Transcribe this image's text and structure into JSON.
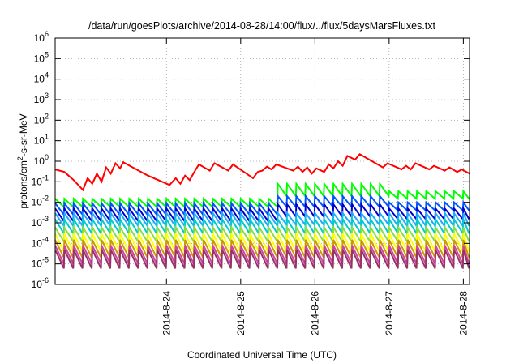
{
  "chart_data": {
    "type": "line",
    "title": "/data/run/goesPlots/archive/2014-08-28/14:00/flux/../flux/5daysMarsFluxes.txt",
    "xlabel": "Coordinated Universal Time (UTC)",
    "ylabel_base": "protons/cm",
    "ylabel_sup": "2",
    "ylabel_rest": "-s-sr-MeV",
    "y_scale": "log",
    "ylim": [
      1e-06,
      1000000.0
    ],
    "y_ticks": [
      {
        "base": "10",
        "exp": "-6"
      },
      {
        "base": "10",
        "exp": "-5"
      },
      {
        "base": "10",
        "exp": "-4"
      },
      {
        "base": "10",
        "exp": "-3"
      },
      {
        "base": "10",
        "exp": "-2"
      },
      {
        "base": "10",
        "exp": "-1"
      },
      {
        "base": "10",
        "exp": "0"
      },
      {
        "base": "10",
        "exp": "1"
      },
      {
        "base": "10",
        "exp": "2"
      },
      {
        "base": "10",
        "exp": "3"
      },
      {
        "base": "10",
        "exp": "4"
      },
      {
        "base": "10",
        "exp": "5"
      },
      {
        "base": "10",
        "exp": "6"
      }
    ],
    "xlim": [
      "2014-08-23T00:00",
      "2014-08-28T14:00"
    ],
    "x_ticks": [
      "2014-8-24",
      "2014-8-25",
      "2014-8-26",
      "2014-8-27",
      "2014-8-28"
    ],
    "grid": true,
    "series": [
      {
        "color": "#ff0000",
        "points": [
          [
            "2014-08-23 00:00",
            0.4
          ],
          [
            "2014-08-23 03:00",
            0.3
          ],
          [
            "2014-08-23 06:00",
            0.12
          ],
          [
            "2014-08-23 09:00",
            0.04
          ],
          [
            "2014-08-23 10:30",
            0.15
          ],
          [
            "2014-08-23 12:00",
            0.08
          ],
          [
            "2014-08-23 13:30",
            0.25
          ],
          [
            "2014-08-23 15:00",
            0.1
          ],
          [
            "2014-08-23 16:30",
            0.5
          ],
          [
            "2014-08-23 18:00",
            0.25
          ],
          [
            "2014-08-23 19:30",
            0.8
          ],
          [
            "2014-08-23 21:00",
            0.45
          ],
          [
            "2014-08-23 22:00",
            0.9
          ],
          [
            "2014-08-24 06:00",
            0.2
          ],
          [
            "2014-08-24 13:00",
            0.07
          ],
          [
            "2014-08-24 15:00",
            0.15
          ],
          [
            "2014-08-24 16:30",
            0.08
          ],
          [
            "2014-08-24 18:00",
            0.2
          ],
          [
            "2014-08-24 19:30",
            0.12
          ],
          [
            "2014-08-24 21:00",
            0.3
          ],
          [
            "2014-08-24 22:30",
            0.7
          ],
          [
            "2014-08-25 02:00",
            0.35
          ],
          [
            "2014-08-25 03:30",
            0.8
          ],
          [
            "2014-08-25 08:00",
            0.35
          ],
          [
            "2014-08-25 09:30",
            0.7
          ],
          [
            "2014-08-25 16:00",
            0.15
          ],
          [
            "2014-08-25 17:30",
            0.3
          ],
          [
            "2014-08-25 19:00",
            0.35
          ],
          [
            "2014-08-25 20:30",
            0.55
          ],
          [
            "2014-08-25 22:00",
            0.4
          ],
          [
            "2014-08-25 23:30",
            0.7
          ],
          [
            "2014-08-26 05:00",
            0.35
          ],
          [
            "2014-08-26 06:30",
            0.55
          ],
          [
            "2014-08-26 08:00",
            0.3
          ],
          [
            "2014-08-26 09:30",
            0.5
          ],
          [
            "2014-08-26 11:00",
            0.25
          ],
          [
            "2014-08-26 12:30",
            0.45
          ],
          [
            "2014-08-26 15:00",
            0.3
          ],
          [
            "2014-08-26 16:30",
            0.7
          ],
          [
            "2014-08-26 18:00",
            0.45
          ],
          [
            "2014-08-26 19:30",
            1.0
          ],
          [
            "2014-08-26 21:00",
            0.6
          ],
          [
            "2014-08-26 22:30",
            1.8
          ],
          [
            "2014-08-27 01:00",
            1.2
          ],
          [
            "2014-08-27 02:30",
            2.2
          ],
          [
            "2014-08-27 10:00",
            0.5
          ],
          [
            "2014-08-27 11:30",
            0.8
          ],
          [
            "2014-08-27 16:00",
            0.4
          ],
          [
            "2014-08-27 17:30",
            0.6
          ],
          [
            "2014-08-27 19:00",
            0.4
          ],
          [
            "2014-08-27 20:30",
            0.8
          ],
          [
            "2014-08-28 01:00",
            0.4
          ],
          [
            "2014-08-28 02:30",
            0.6
          ],
          [
            "2014-08-28 06:00",
            0.35
          ],
          [
            "2014-08-28 07:30",
            0.5
          ],
          [
            "2014-08-28 10:00",
            0.3
          ],
          [
            "2014-08-28 11:30",
            0.4
          ],
          [
            "2014-08-28 14:00",
            0.25
          ]
        ]
      },
      {
        "color": "#00ff00",
        "sawtooth": {
          "before": [
            0.006,
            0.015
          ],
          "after": [
            0.02,
            0.08
          ],
          "final": [
            0.015,
            0.035
          ]
        }
      },
      {
        "color": "#0055ff",
        "sawtooth": {
          "before": [
            0.0025,
            0.009
          ],
          "after": [
            0.006,
            0.02
          ],
          "final": [
            0.004,
            0.01
          ]
        }
      },
      {
        "color": "#0000cc",
        "sawtooth": {
          "before": [
            0.0012,
            0.005
          ],
          "after": [
            0.002,
            0.008
          ],
          "final": [
            0.0015,
            0.005
          ]
        }
      },
      {
        "color": "#22aaff",
        "sawtooth": {
          "before": [
            0.0007,
            0.003
          ],
          "after": [
            0.0008,
            0.003
          ],
          "final": [
            0.0007,
            0.003
          ]
        }
      },
      {
        "color": "#00cccc",
        "sawtooth": {
          "before": [
            0.0003,
            0.0015
          ],
          "after": [
            0.0003,
            0.0015
          ],
          "final": [
            0.0003,
            0.0015
          ]
        }
      },
      {
        "color": "#88dd44",
        "sawtooth": {
          "before": [
            0.00012,
            0.0006
          ],
          "after": [
            0.00012,
            0.0006
          ],
          "final": [
            0.00012,
            0.0006
          ]
        }
      },
      {
        "color": "#ffff00",
        "sawtooth": {
          "before": [
            4e-05,
            0.0003
          ],
          "after": [
            4e-05,
            0.0003
          ],
          "final": [
            4e-05,
            0.0003
          ]
        }
      },
      {
        "color": "#cc9900",
        "sawtooth": {
          "before": [
            2e-05,
            0.00015
          ],
          "after": [
            2e-05,
            0.00015
          ],
          "final": [
            2e-05,
            0.00015
          ]
        }
      },
      {
        "color": "#cc44aa",
        "sawtooth": {
          "before": [
            1e-05,
            8e-05
          ],
          "after": [
            1e-05,
            8e-05
          ],
          "final": [
            1e-05,
            8e-05
          ]
        }
      },
      {
        "color": "#993366",
        "sawtooth": {
          "before": [
            6e-06,
            5e-05
          ],
          "after": [
            6e-06,
            5e-05
          ],
          "final": [
            6e-06,
            5e-05
          ]
        }
      }
    ],
    "sawtooth_period_hours": 3,
    "sawtooth_step_date": "2014-08-26 00:00"
  }
}
